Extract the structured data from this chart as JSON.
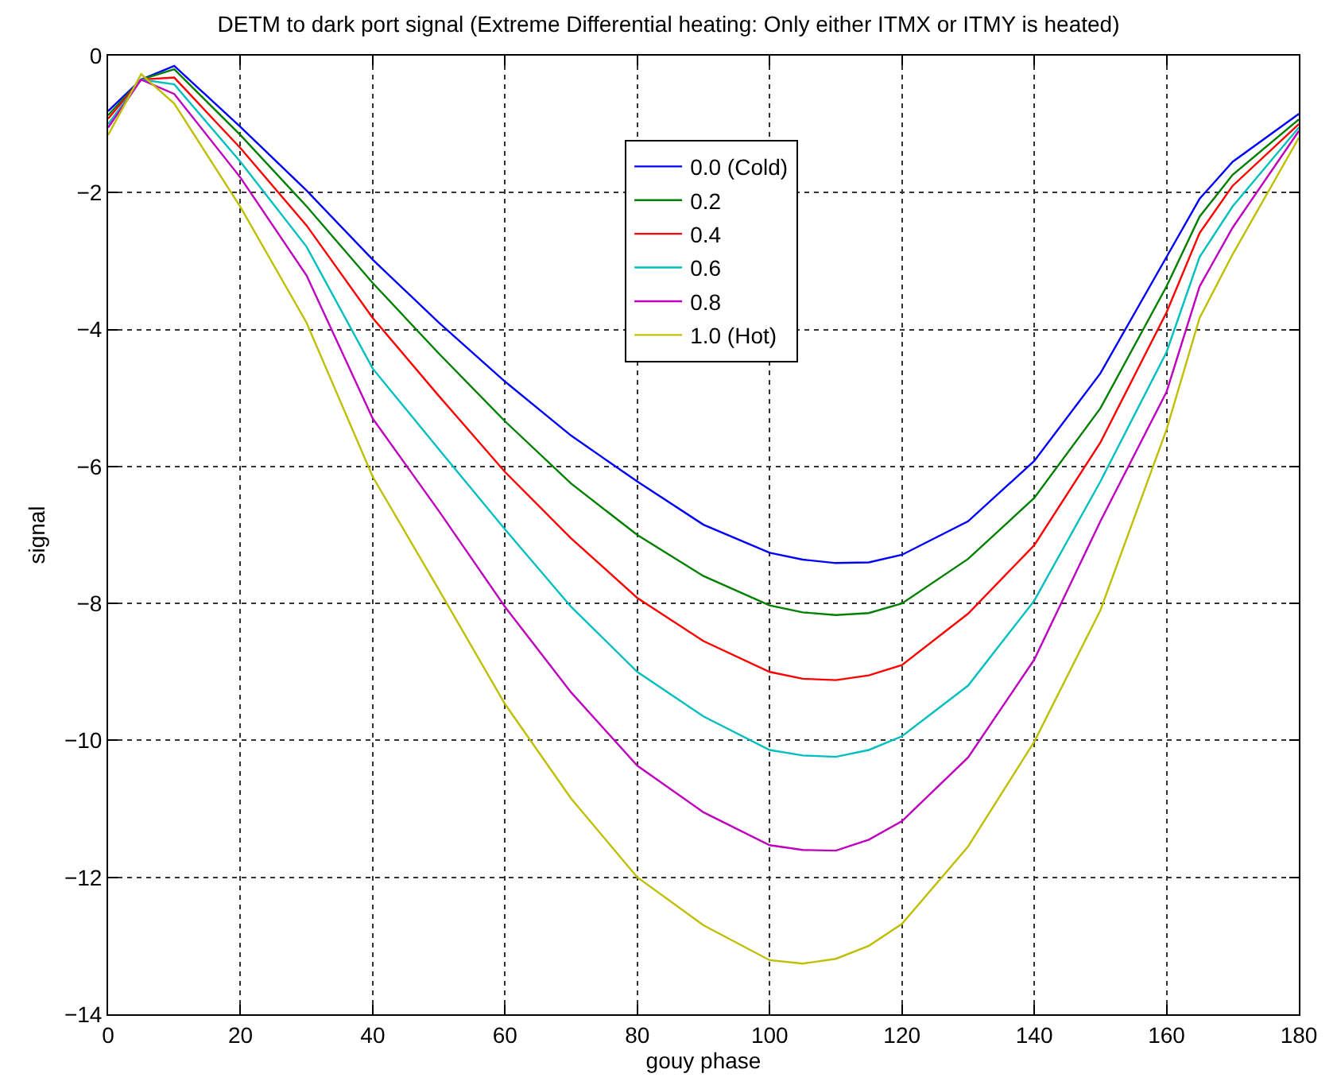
{
  "chart_data": {
    "type": "line",
    "title": "DETM to dark port signal (Extreme Differential heating: Only either ITMX or ITMY is heated)",
    "xlabel": "gouy phase",
    "ylabel": "signal",
    "x": [
      0,
      5,
      10,
      20,
      30,
      40,
      50,
      60,
      70,
      80,
      90,
      100,
      105,
      110,
      115,
      120,
      130,
      140,
      150,
      160,
      165,
      170,
      180
    ],
    "series": [
      {
        "name": "0.0 (Cold)",
        "color": "#0000ff",
        "values": [
          -0.81,
          -0.35,
          -0.15,
          -1.04,
          -1.97,
          -2.98,
          -3.9,
          -4.76,
          -5.55,
          -6.22,
          -6.85,
          -7.26,
          -7.36,
          -7.41,
          -7.4,
          -7.29,
          -6.8,
          -5.92,
          -4.64,
          -2.94,
          -2.09,
          -1.55,
          -0.85
        ]
      },
      {
        "name": "0.2",
        "color": "#008000",
        "values": [
          -0.87,
          -0.35,
          -0.2,
          -1.16,
          -2.2,
          -3.32,
          -4.35,
          -5.34,
          -6.25,
          -7.0,
          -7.6,
          -8.03,
          -8.13,
          -8.17,
          -8.14,
          -8.0,
          -7.35,
          -6.46,
          -5.15,
          -3.37,
          -2.35,
          -1.74,
          -0.93
        ]
      },
      {
        "name": "0.4",
        "color": "#ff0000",
        "values": [
          -0.92,
          -0.35,
          -0.32,
          -1.35,
          -2.48,
          -3.83,
          -4.97,
          -6.08,
          -7.05,
          -7.92,
          -8.55,
          -9.0,
          -9.1,
          -9.12,
          -9.05,
          -8.9,
          -8.15,
          -7.15,
          -5.65,
          -3.75,
          -2.59,
          -1.9,
          -1.0
        ]
      },
      {
        "name": "0.6",
        "color": "#00bfbf",
        "values": [
          -1.0,
          -0.35,
          -0.42,
          -1.55,
          -2.79,
          -4.57,
          -5.75,
          -6.92,
          -8.05,
          -9.0,
          -9.65,
          -10.14,
          -10.22,
          -10.24,
          -10.14,
          -9.94,
          -9.2,
          -7.96,
          -6.22,
          -4.33,
          -2.94,
          -2.2,
          -1.05
        ]
      },
      {
        "name": "0.8",
        "color": "#bf00bf",
        "values": [
          -1.05,
          -0.35,
          -0.56,
          -1.78,
          -3.21,
          -5.3,
          -6.65,
          -8.05,
          -9.3,
          -10.37,
          -11.05,
          -11.53,
          -11.6,
          -11.61,
          -11.45,
          -11.18,
          -10.25,
          -8.82,
          -6.8,
          -4.91,
          -3.37,
          -2.51,
          -1.1
        ]
      },
      {
        "name": "1.0 (Hot)",
        "color": "#bfbf00",
        "values": [
          -1.16,
          -0.27,
          -0.7,
          -2.21,
          -3.9,
          -6.15,
          -7.8,
          -9.47,
          -10.85,
          -12.0,
          -12.7,
          -13.21,
          -13.26,
          -13.19,
          -13.0,
          -12.68,
          -11.55,
          -10.02,
          -8.1,
          -5.46,
          -3.83,
          -2.9,
          -1.2
        ]
      }
    ],
    "xlim": [
      0,
      180
    ],
    "xticks": [
      0,
      20,
      40,
      60,
      80,
      100,
      120,
      140,
      160,
      180
    ],
    "ylim": [
      -14,
      0
    ],
    "yticks": [
      -14,
      -12,
      -10,
      -8,
      -6,
      -4,
      -2,
      0
    ],
    "grid": true,
    "legend": "top",
    "marker": "none",
    "line_style": "solid"
  }
}
